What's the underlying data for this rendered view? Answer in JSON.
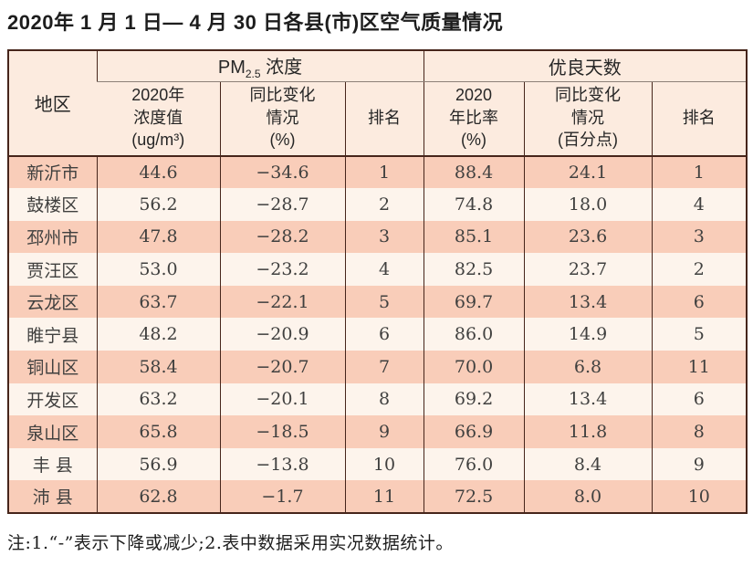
{
  "colors": {
    "row_odd": "#f9cdb9",
    "row_even": "#fdf4ec",
    "header_bg": "#fcebdf",
    "border": "#46251b",
    "header_divider": "#8d8178",
    "title_color": "#1d1d1d"
  },
  "chart_data": {
    "type": "table",
    "title": "2020年 1 月 1 日— 4 月 30 日各县(市)区空气质量情况",
    "group_headers": [
      {
        "label": "地区",
        "colspan": 1
      },
      {
        "label_prefix": "PM",
        "label_sub": "2.5",
        "label_suffix": " 浓度",
        "colspan": 3
      },
      {
        "label": "优良天数",
        "colspan": 3
      }
    ],
    "sub_headers": [
      [
        "2020年",
        "浓度值",
        "(ug/m³)"
      ],
      [
        "同比变化",
        "情况",
        "(%)"
      ],
      [
        "排名"
      ],
      [
        "2020",
        "年比率",
        "(%)"
      ],
      [
        "同比变化",
        "情况",
        "(百分点)"
      ],
      [
        "排名"
      ]
    ],
    "rows": [
      [
        "新沂市",
        "44.6",
        "−34.6",
        "1",
        "88.4",
        "24.1",
        "1"
      ],
      [
        "鼓楼区",
        "56.2",
        "−28.7",
        "2",
        "74.8",
        "18.0",
        "4"
      ],
      [
        "邳州市",
        "47.8",
        "−28.2",
        "3",
        "85.1",
        "23.6",
        "3"
      ],
      [
        "贾汪区",
        "53.0",
        "−23.2",
        "4",
        "82.5",
        "23.7",
        "2"
      ],
      [
        "云龙区",
        "63.7",
        "−22.1",
        "5",
        "69.7",
        "13.4",
        "6"
      ],
      [
        "睢宁县",
        "48.2",
        "−20.9",
        "6",
        "86.0",
        "14.9",
        "5"
      ],
      [
        "铜山区",
        "58.4",
        "−20.7",
        "7",
        "70.0",
        "6.8",
        "11"
      ],
      [
        "开发区",
        "63.2",
        "−20.1",
        "8",
        "69.2",
        "13.4",
        "6"
      ],
      [
        "泉山区",
        "65.8",
        "−18.5",
        "9",
        "66.9",
        "11.8",
        "8"
      ],
      [
        "丰 县",
        "56.9",
        "−13.8",
        "10",
        "76.0",
        "8.4",
        "9"
      ],
      [
        "沛 县",
        "62.8",
        "−1.7",
        "11",
        "72.5",
        "8.0",
        "10"
      ]
    ],
    "footnote": "注:1.“-”表示下降或减少;2.表中数据采用实况数据统计。"
  }
}
